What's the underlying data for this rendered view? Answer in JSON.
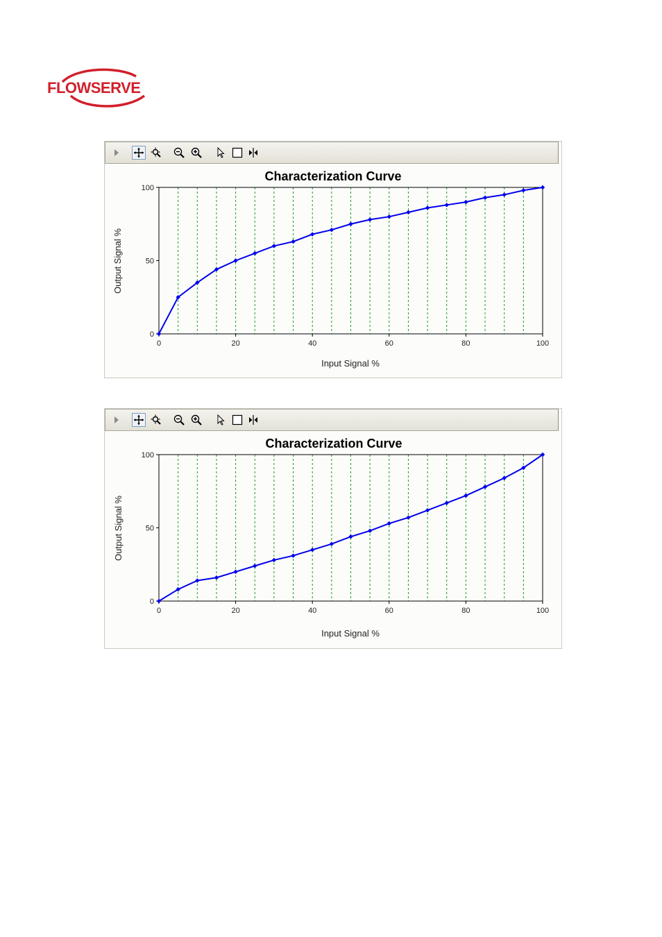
{
  "logo": {
    "text": "FLOWSERVE",
    "color": "#d21f2b"
  },
  "toolbar": {
    "icons": [
      "expand-arrow-icon",
      "pan-icon",
      "zoom-area-icon",
      "zoom-out-icon",
      "zoom-in-icon",
      "pointer-icon",
      "select-box-icon",
      "cursor-marker-icon"
    ]
  },
  "colors": {
    "series": "#0000ee",
    "grid": "#1a9a1a",
    "axis": "#000000"
  },
  "chart_data": [
    {
      "type": "line",
      "title": "Characterization Curve",
      "xlabel": "Input Signal %",
      "ylabel": "Output Signal %",
      "xlim": [
        0,
        100
      ],
      "ylim": [
        0,
        100
      ],
      "xticks": [
        0,
        20,
        40,
        60,
        80,
        100
      ],
      "yticks": [
        0,
        50,
        100
      ],
      "grid": "vertical dashed every 5",
      "x": [
        0,
        5,
        10,
        15,
        20,
        25,
        30,
        35,
        40,
        45,
        50,
        55,
        60,
        65,
        70,
        75,
        80,
        85,
        90,
        95,
        100
      ],
      "series": [
        {
          "values": [
            0,
            25,
            35,
            44,
            50,
            55,
            60,
            63,
            68,
            71,
            75,
            78,
            80,
            83,
            86,
            88,
            90,
            93,
            95,
            98,
            100
          ]
        }
      ]
    },
    {
      "type": "line",
      "title": "Characterization Curve",
      "xlabel": "Input Signal %",
      "ylabel": "Output Signal %",
      "xlim": [
        0,
        100
      ],
      "ylim": [
        0,
        100
      ],
      "xticks": [
        0,
        20,
        40,
        60,
        80,
        100
      ],
      "yticks": [
        0,
        50,
        100
      ],
      "grid": "vertical dashed every 5",
      "x": [
        0,
        5,
        10,
        15,
        20,
        25,
        30,
        35,
        40,
        45,
        50,
        55,
        60,
        65,
        70,
        75,
        80,
        85,
        90,
        95,
        100
      ],
      "series": [
        {
          "values": [
            0,
            8,
            14,
            16,
            20,
            24,
            28,
            31,
            35,
            39,
            44,
            48,
            53,
            57,
            62,
            67,
            72,
            78,
            84,
            91,
            100
          ]
        }
      ]
    }
  ]
}
